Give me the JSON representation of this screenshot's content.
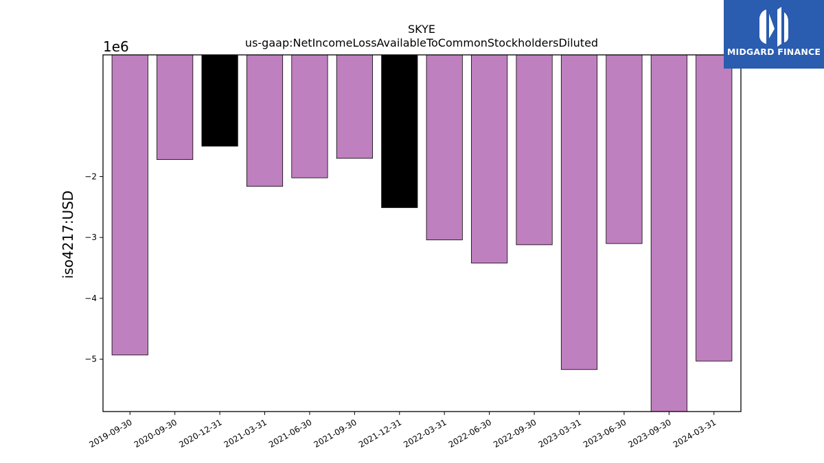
{
  "chart_data": {
    "type": "bar",
    "title": "SKYE",
    "subtitle": "us-gaap:NetIncomeLossAvailableToCommonStockholdersDiluted",
    "ylabel": "iso4217:USD",
    "y_offset_label": "1e6",
    "categories": [
      "2019-09-30",
      "2020-09-30",
      "2020-12-31",
      "2021-03-31",
      "2021-06-30",
      "2021-09-30",
      "2021-12-31",
      "2022-03-31",
      "2022-06-30",
      "2022-09-30",
      "2023-03-31",
      "2023-06-30",
      "2023-09-30",
      "2024-03-31"
    ],
    "values": [
      -4930000,
      -1720000,
      -1500000,
      -2160000,
      -2020000,
      -1700000,
      -2510000,
      -3040000,
      -3420000,
      -3120000,
      -5170000,
      -3100000,
      -5860000,
      -5030000
    ],
    "colors": [
      "#bf80bf",
      "#bf80bf",
      "#000000",
      "#bf80bf",
      "#bf80bf",
      "#bf80bf",
      "#000000",
      "#bf80bf",
      "#bf80bf",
      "#bf80bf",
      "#bf80bf",
      "#bf80bf",
      "#bf80bf",
      "#bf80bf"
    ],
    "ylim": [
      -5860000,
      0
    ],
    "yticks": [
      -2000000,
      -3000000,
      -4000000,
      -5000000
    ],
    "ytick_labels": [
      "−2",
      "−3",
      "−4",
      "−5"
    ],
    "grid": false
  },
  "logo": {
    "text": "MIDGARD FINANCE",
    "background": "#2a5caf"
  }
}
